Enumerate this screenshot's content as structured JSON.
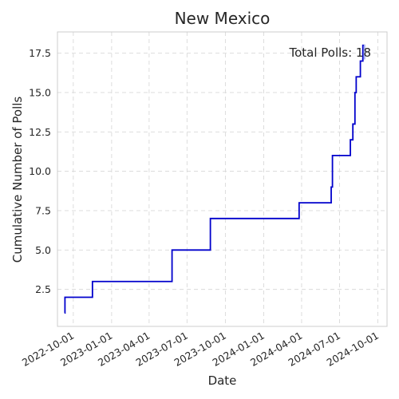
{
  "chart_data": {
    "type": "line",
    "title": "New Mexico",
    "xlabel": "Date",
    "ylabel": "Cumulative Number of Polls",
    "annotation": "Total Polls: 18",
    "line_color": "#0000cc",
    "highlight_color": "#aab4f0",
    "step": "post",
    "grid": true,
    "xlim": [
      "2022-08-24",
      "2024-10-23"
    ],
    "ylim": [
      0.15,
      18.85
    ],
    "x_ticks": [
      "2022-10-01",
      "2023-01-01",
      "2023-04-01",
      "2023-07-01",
      "2023-10-01",
      "2024-01-01",
      "2024-04-01",
      "2024-07-01",
      "2024-10-01"
    ],
    "y_ticks": [
      "2.5",
      "5.0",
      "7.5",
      "10.0",
      "12.5",
      "15.0",
      "17.5"
    ],
    "series": [
      {
        "x": [
          "2022-09-10",
          "2022-09-11",
          "2022-11-16",
          "2023-05-26",
          "2023-08-26",
          "2024-03-26",
          "2024-06-11",
          "2024-06-14",
          "2024-07-27",
          "2024-08-02",
          "2024-08-07",
          "2024-08-10",
          "2024-08-17",
          "2024-08-20",
          "2024-08-22",
          "2024-08-26",
          "2024-08-29",
          "2024-08-30"
        ],
        "y": [
          1,
          2,
          3,
          5,
          7,
          8,
          9,
          11,
          12,
          13,
          15,
          16,
          16,
          17,
          17,
          18,
          18,
          18
        ]
      }
    ]
  }
}
